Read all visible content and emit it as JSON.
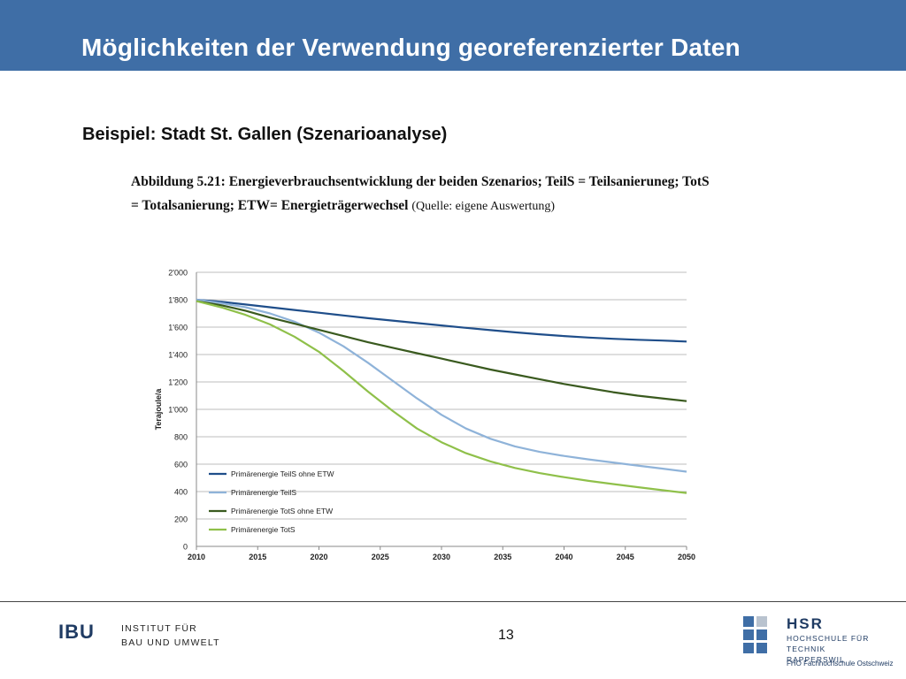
{
  "header": {
    "title": "Möglichkeiten der Verwendung georeferenzierter Daten"
  },
  "subtitle": "Beispiel: Stadt St. Gallen (Szenarioanalyse)",
  "figure_caption": {
    "bold_text": "Abbildung 5.21: Energieverbrauchsentwicklung der beiden Szenarios; TeilS = Teilsanieruneg; TotS = Totalsanierung; ETW= Energieträgerwechsel",
    "source_text": "(Quelle: eigene Auswertung)"
  },
  "chart_data": {
    "type": "line",
    "title": "",
    "xlabel": "",
    "ylabel": "Terajoule/a",
    "xlim": [
      2010,
      2050
    ],
    "ylim": [
      0,
      2000
    ],
    "x_ticks": [
      "2010",
      "2015",
      "2020",
      "2025",
      "2030",
      "2035",
      "2040",
      "2045",
      "2050"
    ],
    "y_ticks": [
      "0",
      "200",
      "400",
      "600",
      "800",
      "1'000",
      "1'200",
      "1'400",
      "1'600",
      "1'800",
      "2'000"
    ],
    "grid": true,
    "legend_position": "bottom-left",
    "x": [
      2010,
      2012,
      2014,
      2016,
      2018,
      2020,
      2022,
      2024,
      2026,
      2028,
      2030,
      2032,
      2034,
      2036,
      2038,
      2040,
      2042,
      2044,
      2046,
      2048,
      2050
    ],
    "series": [
      {
        "name": "Primärenergie TeilS ohne ETW",
        "color": "#1f4e8a",
        "values": [
          1800,
          1785,
          1765,
          1745,
          1725,
          1705,
          1685,
          1665,
          1648,
          1630,
          1612,
          1595,
          1578,
          1562,
          1548,
          1535,
          1524,
          1515,
          1508,
          1502,
          1495
        ]
      },
      {
        "name": "Primärenergie TeilS",
        "color": "#8fb3d9",
        "values": [
          1800,
          1775,
          1745,
          1700,
          1640,
          1560,
          1460,
          1340,
          1210,
          1080,
          960,
          860,
          785,
          730,
          690,
          660,
          635,
          612,
          590,
          568,
          545
        ]
      },
      {
        "name": "Primärenergie TotS ohne ETW",
        "color": "#3a5a1f",
        "values": [
          1790,
          1760,
          1720,
          1670,
          1625,
          1580,
          1535,
          1490,
          1450,
          1410,
          1370,
          1330,
          1290,
          1255,
          1220,
          1185,
          1155,
          1125,
          1100,
          1080,
          1060
        ]
      },
      {
        "name": "Primärenergie TotS",
        "color": "#8fc04a",
        "values": [
          1790,
          1745,
          1690,
          1620,
          1530,
          1420,
          1280,
          1130,
          990,
          860,
          760,
          680,
          620,
          572,
          535,
          505,
          478,
          455,
          432,
          410,
          390
        ]
      }
    ]
  },
  "footer": {
    "ibu_logo_text": "IBU",
    "ibu_line1": "INSTITUT FÜR",
    "ibu_line2": "BAU UND UMWELT",
    "page_number": "13",
    "hsr_name": "HSR",
    "hsr_line1": "HOCHSCHULE FÜR TECHNIK",
    "hsr_line2": "RAPPERSWIL",
    "hsr_fho": "FHO Fachhochschule Ostschweiz"
  }
}
